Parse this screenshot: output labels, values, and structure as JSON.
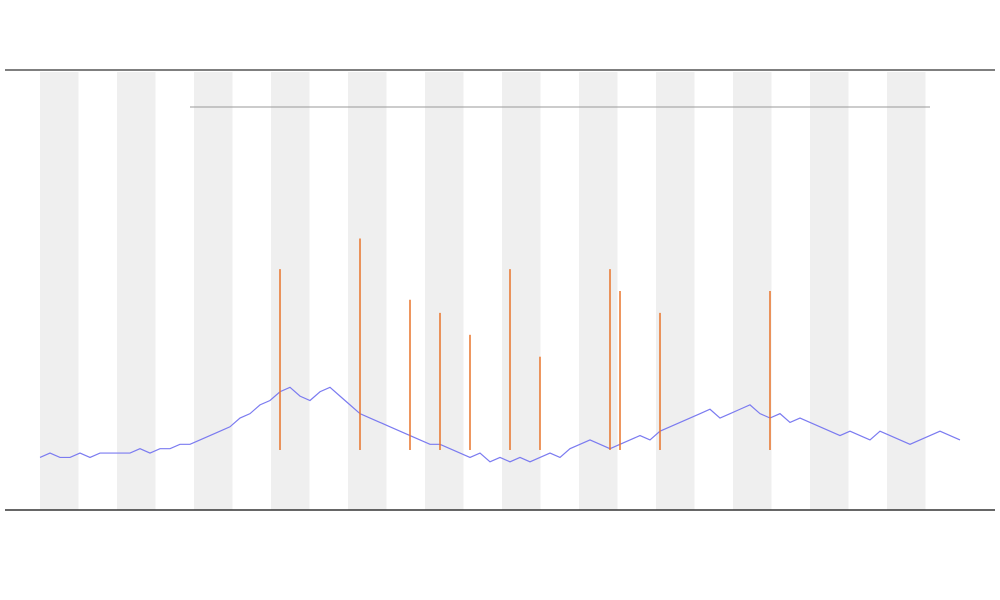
{
  "chart_data": {
    "type": "line",
    "x": [
      0,
      1,
      2,
      3,
      4,
      5,
      6,
      7,
      8,
      9,
      10,
      11,
      12,
      13,
      14,
      15,
      16,
      17,
      18,
      19,
      20,
      21,
      22,
      23,
      24,
      25,
      26,
      27,
      28,
      29,
      30,
      31,
      32,
      33,
      34,
      35,
      36,
      37,
      38,
      39,
      40,
      41,
      42,
      43,
      44,
      45,
      46,
      47,
      48,
      49,
      50,
      51,
      52,
      53,
      54,
      55,
      56,
      57,
      58,
      59,
      60,
      61,
      62,
      63,
      64,
      65,
      66,
      67,
      68,
      69,
      70,
      71,
      72,
      73,
      74,
      75,
      76,
      77,
      78,
      79,
      80,
      81,
      82,
      83,
      84,
      85,
      86,
      87,
      88,
      89,
      90,
      91,
      92
    ],
    "xlim": [
      0,
      92
    ],
    "ylim": [
      0,
      100
    ],
    "series": [
      {
        "color": "#7b7bf0",
        "values": [
          12,
          13,
          12,
          12,
          13,
          12,
          13,
          13,
          13,
          13,
          14,
          13,
          14,
          14,
          15,
          15,
          16,
          17,
          18,
          19,
          21,
          22,
          24,
          25,
          27,
          28,
          26,
          25,
          27,
          28,
          26,
          24,
          22,
          21,
          20,
          19,
          18,
          17,
          16,
          15,
          15,
          14,
          13,
          12,
          13,
          11,
          12,
          11,
          12,
          11,
          12,
          13,
          12,
          14,
          15,
          16,
          15,
          14,
          15,
          16,
          17,
          16,
          18,
          19,
          20,
          21,
          22,
          23,
          21,
          22,
          23,
          24,
          22,
          21,
          22,
          20,
          21,
          20,
          19,
          18,
          17,
          18,
          17,
          16,
          18,
          17,
          16,
          15,
          16,
          17,
          18,
          17,
          16
        ]
      },
      {
        "color": "#e8742a",
        "values": [
          null,
          null,
          null,
          null,
          null,
          null,
          null,
          null,
          null,
          null,
          null,
          null,
          null,
          null,
          null,
          null,
          null,
          null,
          null,
          null,
          null,
          null,
          null,
          null,
          55,
          null,
          null,
          null,
          null,
          null,
          null,
          null,
          62,
          null,
          null,
          null,
          null,
          48,
          null,
          null,
          45,
          null,
          null,
          40,
          null,
          null,
          null,
          55,
          null,
          null,
          35,
          null,
          null,
          null,
          null,
          null,
          null,
          55,
          50,
          null,
          null,
          null,
          45,
          null,
          null,
          null,
          null,
          null,
          null,
          null,
          null,
          null,
          null,
          50,
          null,
          null,
          null,
          null,
          null,
          null,
          null,
          null,
          null,
          null,
          null,
          null,
          null,
          null,
          null,
          null,
          null,
          null,
          null
        ]
      }
    ]
  }
}
